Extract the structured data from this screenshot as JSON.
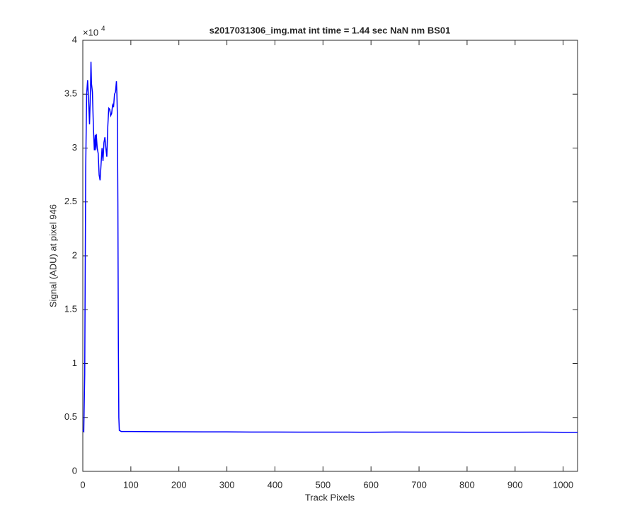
{
  "chart_data": {
    "type": "line",
    "title": "s2017031306_img.mat int time = 1.44 sec  NaN nm BS01",
    "x_label": "Track Pixels",
    "y_label": "Signal (ADU) at pixel 946",
    "y_multiplier": {
      "base": "×10",
      "exponent": "4"
    },
    "xlim": [
      0,
      1030
    ],
    "xticks": [
      0,
      100,
      200,
      300,
      400,
      500,
      600,
      700,
      800,
      900,
      1000
    ],
    "ylim": [
      0,
      4
    ],
    "yticks": [
      0,
      0.5,
      1,
      1.5,
      2,
      2.5,
      3,
      3.5,
      4
    ],
    "grid": false,
    "series": [
      {
        "color": "#0000ff",
        "x": [
          0,
          2,
          4,
          6,
          8,
          10,
          12,
          14,
          16,
          17,
          18,
          20,
          22,
          24,
          26,
          27,
          28,
          30,
          32,
          34,
          36,
          38,
          40,
          42,
          44,
          46,
          48,
          50,
          52,
          54,
          56,
          58,
          60,
          62,
          64,
          66,
          68,
          70,
          71,
          72,
          73,
          74,
          75,
          76,
          80,
          100,
          150,
          200,
          250,
          300,
          350,
          400,
          450,
          500,
          550,
          600,
          650,
          700,
          750,
          800,
          850,
          900,
          950,
          1000,
          1030
        ],
        "values": [
          0.38,
          0.37,
          0.9,
          2.8,
          3.5,
          3.63,
          3.45,
          3.22,
          3.55,
          3.8,
          3.6,
          3.52,
          3.2,
          2.98,
          3.12,
          2.98,
          3.13,
          3.0,
          2.95,
          2.75,
          2.7,
          2.85,
          3.0,
          2.88,
          3.05,
          3.1,
          3.0,
          2.92,
          3.2,
          3.37,
          3.36,
          3.3,
          3.32,
          3.4,
          3.38,
          3.5,
          3.52,
          3.62,
          3.5,
          3.3,
          2.5,
          1.2,
          0.5,
          0.38,
          0.37,
          0.37,
          0.368,
          0.367,
          0.366,
          0.366,
          0.365,
          0.365,
          0.364,
          0.364,
          0.364,
          0.363,
          0.365,
          0.364,
          0.364,
          0.363,
          0.363,
          0.363,
          0.364,
          0.362,
          0.362
        ]
      }
    ]
  }
}
